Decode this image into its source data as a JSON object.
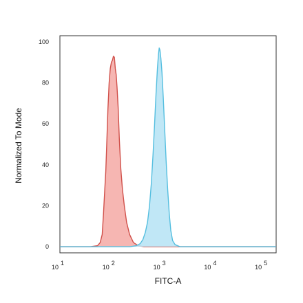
{
  "chart_data": {
    "type": "area",
    "title": "",
    "xlabel": "FITC-A",
    "ylabel": "Normalized To Mode",
    "x_scale": "log",
    "xlim": [
      10,
      180000
    ],
    "ylim": [
      -3,
      103
    ],
    "y_ticks": [
      "0",
      "20",
      "40",
      "60",
      "80",
      "100"
    ],
    "x_ticks": [
      {
        "base": "10",
        "exp": "1",
        "value": 10
      },
      {
        "base": "10",
        "exp": "2",
        "value": 100
      },
      {
        "base": "10",
        "exp": "3",
        "value": 1000
      },
      {
        "base": "10",
        "exp": "4",
        "value": 10000
      },
      {
        "base": "10",
        "exp": "5",
        "value": 100000
      }
    ],
    "grid": false,
    "legend": "none",
    "series": [
      {
        "fill": "#f4a9a4",
        "stroke": "#d0504a",
        "points": [
          [
            10,
            0
          ],
          [
            40,
            0
          ],
          [
            55,
            0.5
          ],
          [
            62,
            2
          ],
          [
            68,
            6
          ],
          [
            72,
            16
          ],
          [
            76,
            27
          ],
          [
            80,
            37
          ],
          [
            84,
            52
          ],
          [
            88,
            67
          ],
          [
            93,
            80
          ],
          [
            98,
            87
          ],
          [
            103,
            90
          ],
          [
            108,
            91
          ],
          [
            113,
            93
          ],
          [
            118,
            92.5
          ],
          [
            123,
            87
          ],
          [
            128,
            84
          ],
          [
            133,
            78
          ],
          [
            140,
            68
          ],
          [
            148,
            52
          ],
          [
            158,
            38
          ],
          [
            170,
            28
          ],
          [
            185,
            20
          ],
          [
            205,
            12
          ],
          [
            235,
            6
          ],
          [
            280,
            2
          ],
          [
            350,
            0.5
          ],
          [
            450,
            0
          ],
          [
            180000,
            0
          ]
        ]
      },
      {
        "fill": "#b5e3f5",
        "stroke": "#54bedf",
        "points": [
          [
            10,
            0
          ],
          [
            240,
            0
          ],
          [
            320,
            0.5
          ],
          [
            380,
            1.5
          ],
          [
            430,
            3.5
          ],
          [
            480,
            7
          ],
          [
            530,
            12
          ],
          [
            580,
            20
          ],
          [
            630,
            31
          ],
          [
            680,
            45
          ],
          [
            730,
            60
          ],
          [
            780,
            75
          ],
          [
            830,
            87
          ],
          [
            870,
            94
          ],
          [
            900,
            97
          ],
          [
            930,
            96
          ],
          [
            970,
            92
          ],
          [
            1020,
            85
          ],
          [
            1080,
            73
          ],
          [
            1150,
            58
          ],
          [
            1230,
            42
          ],
          [
            1320,
            28
          ],
          [
            1420,
            16
          ],
          [
            1520,
            8
          ],
          [
            1650,
            3
          ],
          [
            1850,
            1
          ],
          [
            2300,
            0
          ],
          [
            180000,
            0
          ]
        ]
      }
    ]
  }
}
